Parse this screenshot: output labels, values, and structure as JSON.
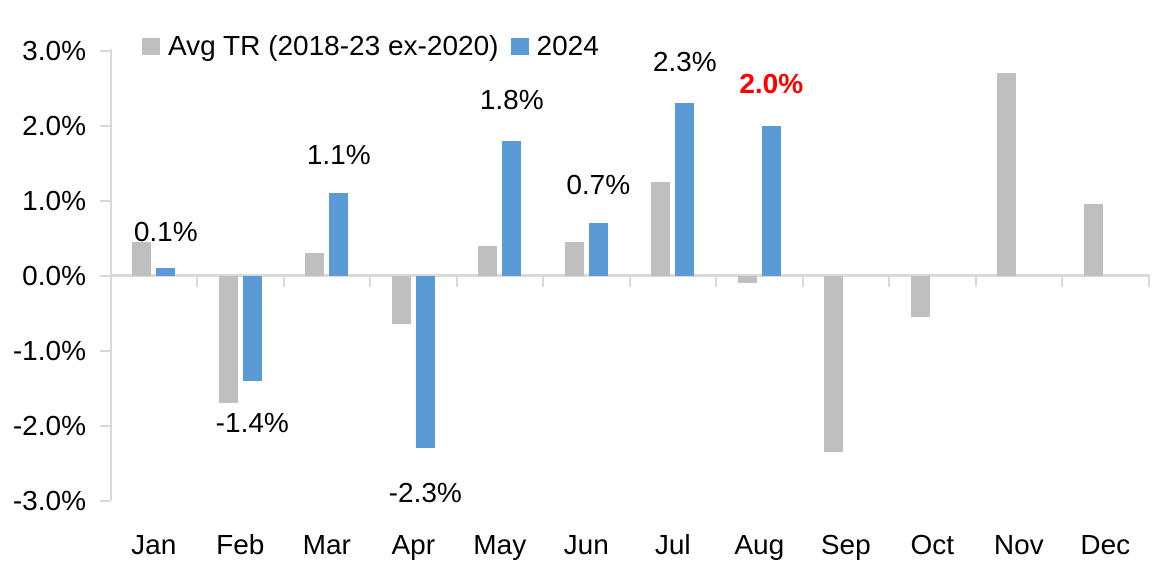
{
  "chart_data": {
    "type": "bar",
    "title": "",
    "categories": [
      "Jan",
      "Feb",
      "Mar",
      "Apr",
      "May",
      "Jun",
      "Jul",
      "Aug",
      "Sep",
      "Oct",
      "Nov",
      "Dec"
    ],
    "series": [
      {
        "name": "Avg TR (2018-23 ex-2020)",
        "color": "#BFBFBF",
        "values": [
          0.45,
          -1.7,
          0.3,
          -0.65,
          0.4,
          0.45,
          1.25,
          -0.1,
          -2.35,
          -0.55,
          2.7,
          0.95
        ]
      },
      {
        "name": "2024",
        "color": "#5B9BD5",
        "values": [
          0.1,
          -1.4,
          1.1,
          -2.3,
          1.8,
          0.7,
          2.3,
          2.0,
          null,
          null,
          null,
          null
        ]
      }
    ],
    "y_axis": {
      "tick_labels": [
        "3.0%",
        "2.0%",
        "1.0%",
        "0.0%",
        "-1.0%",
        "-2.0%",
        "-3.0%"
      ],
      "tick_values": [
        3,
        2,
        1,
        0,
        -1,
        -2,
        -3
      ],
      "range": [
        -3,
        3
      ],
      "unit": "%"
    },
    "x_axis": {
      "tick_labels": [
        "Jan",
        "Feb",
        "Mar",
        "Apr",
        "May",
        "Jun",
        "Jul",
        "Aug",
        "Sep",
        "Oct",
        "Nov",
        "Dec"
      ]
    },
    "grid": false,
    "axis_color": "#D9D9D9",
    "legend": {
      "position": "top",
      "entries": [
        {
          "label": "Avg TR (2018-23 ex-2020)",
          "color": "#BFBFBF"
        },
        {
          "label": "2024",
          "color": "#5B9BD5"
        }
      ]
    },
    "data_labels": [
      {
        "month_index": 0,
        "month": "Jan",
        "text": "0.1%",
        "color": "#000000",
        "bold": false
      },
      {
        "month_index": 1,
        "month": "Feb",
        "text": "-1.4%",
        "color": "#000000",
        "bold": false
      },
      {
        "month_index": 2,
        "month": "Mar",
        "text": "1.1%",
        "color": "#000000",
        "bold": false
      },
      {
        "month_index": 3,
        "month": "Apr",
        "text": "-2.3%",
        "color": "#000000",
        "bold": false
      },
      {
        "month_index": 4,
        "month": "May",
        "text": "1.8%",
        "color": "#000000",
        "bold": false
      },
      {
        "month_index": 5,
        "month": "Jun",
        "text": "0.7%",
        "color": "#000000",
        "bold": false
      },
      {
        "month_index": 6,
        "month": "Jul",
        "text": "2.3%",
        "color": "#000000",
        "bold": false
      },
      {
        "month_index": 7,
        "month": "Aug",
        "text": "2.0%",
        "color": "#FF0000",
        "bold": true
      }
    ]
  }
}
